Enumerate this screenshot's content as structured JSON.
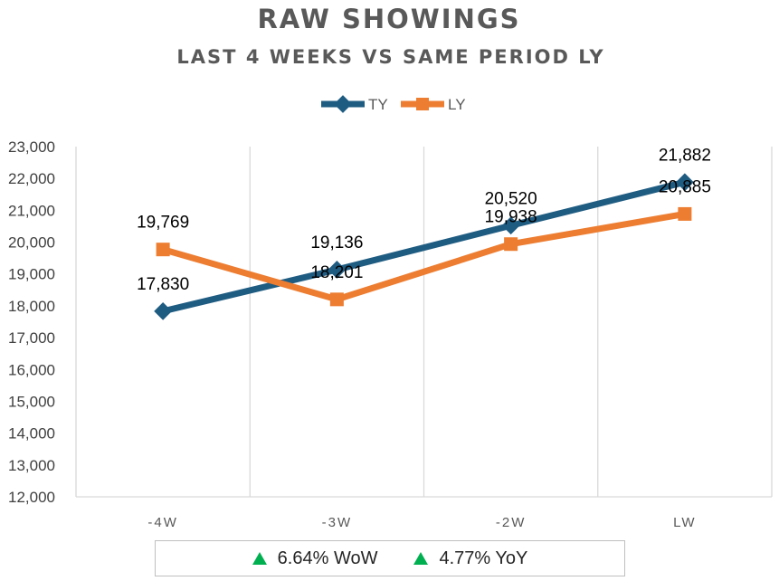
{
  "chart_data": {
    "type": "line",
    "title": "RAW SHOWINGS",
    "subtitle": "LAST 4 WEEKS VS SAME PERIOD LY",
    "categories": [
      "-4W",
      "-3W",
      "-2W",
      "LW"
    ],
    "series": [
      {
        "name": "TY",
        "values": [
          17830,
          19136,
          20520,
          21882
        ],
        "labels": [
          "17,830",
          "19,136",
          "20,520",
          "21,882"
        ],
        "color": "#1f5c82",
        "marker": "diamond"
      },
      {
        "name": "LY",
        "values": [
          19769,
          18201,
          19938,
          20885
        ],
        "labels": [
          "19,769",
          "18,201",
          "19,938",
          "20,885"
        ],
        "color": "#ed7d31",
        "marker": "square"
      }
    ],
    "ylim": [
      12000,
      23000
    ],
    "yticks": [
      12000,
      13000,
      14000,
      15000,
      16000,
      17000,
      18000,
      19000,
      20000,
      21000,
      22000,
      23000
    ],
    "ytick_labels": [
      "12,000",
      "13,000",
      "14,000",
      "15,000",
      "16,000",
      "17,000",
      "18,000",
      "19,000",
      "20,000",
      "21,000",
      "22,000",
      "23,000"
    ],
    "xlabel": "",
    "ylabel": "",
    "legend": "top-center",
    "grid": "vertical"
  },
  "summary": {
    "wow": "6.64% WoW",
    "yoy": "4.77% YoY",
    "up_color": "#00b050"
  }
}
